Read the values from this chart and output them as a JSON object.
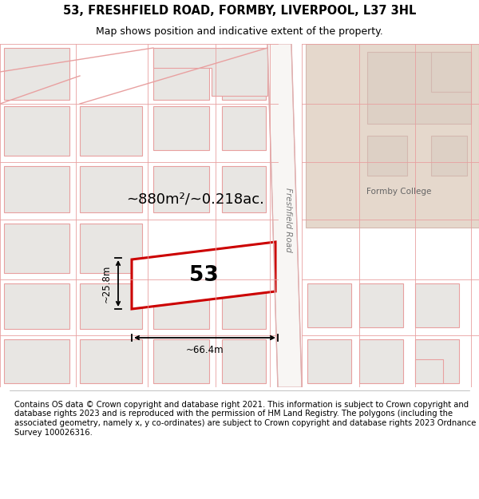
{
  "title_line1": "53, FRESHFIELD ROAD, FORMBY, LIVERPOOL, L37 3HL",
  "title_line2": "Map shows position and indicative extent of the property.",
  "footer_text": "Contains OS data © Crown copyright and database right 2021. This information is subject to Crown copyright and database rights 2023 and is reproduced with the permission of HM Land Registry. The polygons (including the associated geometry, namely x, y co-ordinates) are subject to Crown copyright and database rights 2023 Ordnance Survey 100026316.",
  "map_bg": "#f2f0ee",
  "building_fill": "#e8e6e3",
  "building_stroke": "#e8a0a0",
  "highlight_fill": "#ffffff",
  "highlight_stroke": "#cc0000",
  "road_fill": "#f8f6f4",
  "road_stroke": "#e0b0b0",
  "college_fill": "#e5d8cc",
  "college_stroke": "#d4b8b0",
  "road_label": "Freshfield Road",
  "area_label": "~880m²/~0.218ac.",
  "width_label": "~66.4m",
  "height_label": "~25.8m",
  "plot_number": "53",
  "title_fontsize": 10.5,
  "subtitle_fontsize": 9,
  "footer_fontsize": 7.2,
  "annotation_color": "#000000"
}
